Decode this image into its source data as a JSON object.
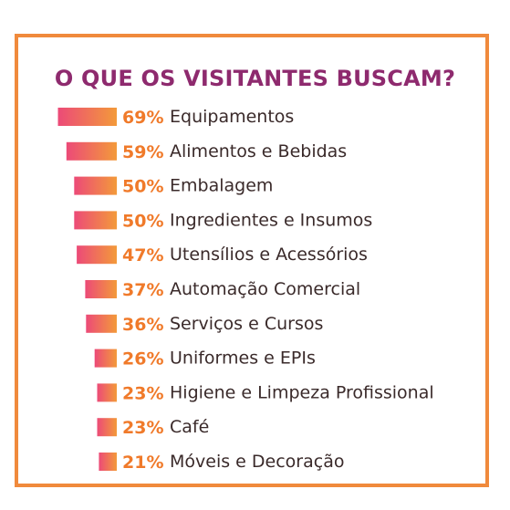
{
  "title": "O QUE OS VISITANTES BUSCAM?",
  "colors": {
    "border": "#f08a3c",
    "title": "#8e2a6e",
    "percent": "#f07a2a",
    "label": "#3a2a2a",
    "bar_start": "#ec4a78",
    "bar_end": "#f39a3a"
  },
  "chart_data": {
    "type": "bar",
    "orientation": "horizontal",
    "title": "O QUE OS VISITANTES BUSCAM?",
    "categories": [
      "Equipamentos",
      "Alimentos e Bebidas",
      "Embalagem",
      "Ingredientes e Insumos",
      "Utensílios e Acessórios",
      "Automação Comercial",
      "Serviços e Cursos",
      "Uniformes e EPIs",
      "Higiene e Limpeza Profissional",
      "Café",
      "Móveis e Decoração"
    ],
    "values": [
      69,
      59,
      50,
      50,
      47,
      37,
      36,
      26,
      23,
      23,
      21
    ],
    "value_labels": [
      "69%",
      "59%",
      "50%",
      "50%",
      "47%",
      "37%",
      "36%",
      "26%",
      "23%",
      "23%",
      "21%"
    ],
    "unit": "%",
    "xlim": [
      0,
      100
    ],
    "grid": false,
    "legend": "none"
  }
}
